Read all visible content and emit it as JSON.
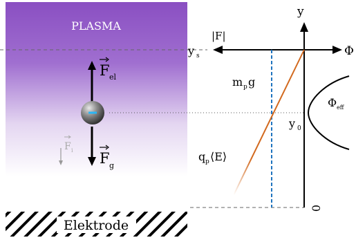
{
  "plasma": {
    "label": "PLASMA"
  },
  "electrode": {
    "label": "Elektrode"
  },
  "forces": {
    "electric": {
      "symbol": "F",
      "sub": "el"
    },
    "gravity": {
      "symbol": "F",
      "sub": "g"
    },
    "ion": {
      "symbol": "F",
      "sub": "i"
    }
  },
  "graph": {
    "y_axis_label": "y",
    "phi_label": "Φ",
    "abs_force_label": "|F|",
    "ys_label": {
      "main": "y",
      "sub": "s"
    },
    "y0_label": {
      "main": "y",
      "sub": "0"
    },
    "phi_eff_label": {
      "main": "Φ",
      "sub": "eff"
    },
    "gravity_force_label": {
      "pre": "m",
      "sub": "p",
      "post": "g"
    },
    "electric_force_label": {
      "pre": "q",
      "sub": "p",
      "post": "⟨E⟩"
    },
    "origin_label": "0"
  },
  "colors": {
    "plasma_top": "#8f55c4",
    "plasma_bottom": "#ffffff",
    "electric_line": "#d2691e",
    "gravity_line": "#1e73be",
    "axis": "#000000",
    "sheath_dash": "#666666",
    "particle_mark": "#29b6f6"
  }
}
